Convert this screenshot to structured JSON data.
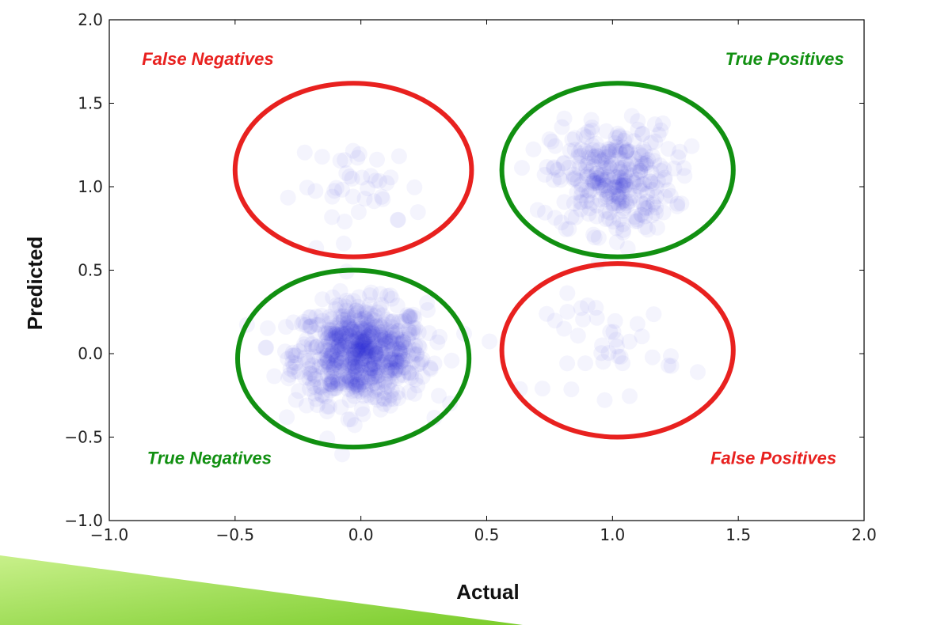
{
  "colors": {
    "point": "#2a2ad4",
    "true_color": "#119011",
    "false_color": "#e8211f",
    "accent_green_light": "#c8f08a",
    "accent_green_dark": "#7acc2a"
  },
  "chart_data": {
    "type": "scatter",
    "xlabel": "Actual",
    "ylabel": "Predicted",
    "xlim": [
      -1.0,
      2.0
    ],
    "ylim": [
      -1.0,
      2.0
    ],
    "xticks": [
      -1.0,
      -0.5,
      0.0,
      0.5,
      1.0,
      1.5,
      2.0
    ],
    "yticks": [
      -1.0,
      -0.5,
      0.0,
      0.5,
      1.0,
      1.5,
      2.0
    ],
    "xtick_labels": [
      "−1.0",
      "−0.5",
      "0.0",
      "0.5",
      "1.0",
      "1.5",
      "2.0"
    ],
    "ytick_labels": [
      "−1.0",
      "−0.5",
      "0.0",
      "0.5",
      "1.0",
      "1.5",
      "2.0"
    ],
    "grid": false,
    "point_alpha": 0.05,
    "clusters": [
      {
        "name": "True Negatives",
        "center": [
          0.0,
          0.0
        ],
        "spread": [
          0.13,
          0.15
        ],
        "points": 700
      },
      {
        "name": "True Positives",
        "center": [
          1.0,
          1.05
        ],
        "spread": [
          0.12,
          0.16
        ],
        "points": 320
      },
      {
        "name": "False Negatives",
        "center": [
          0.0,
          1.0
        ],
        "spread": [
          0.13,
          0.13
        ],
        "points": 40
      },
      {
        "name": "False Positives",
        "center": [
          1.0,
          0.05
        ],
        "spread": [
          0.13,
          0.15
        ],
        "points": 40
      }
    ],
    "regions": [
      {
        "label": "False Negatives",
        "kind": "false",
        "center": [
          -0.03,
          1.1
        ],
        "radius": [
          0.47,
          0.52
        ]
      },
      {
        "label": "True Positives",
        "kind": "true",
        "center": [
          1.02,
          1.1
        ],
        "radius": [
          0.46,
          0.52
        ]
      },
      {
        "label": "True Negatives",
        "kind": "true",
        "center": [
          -0.03,
          -0.03
        ],
        "radius": [
          0.46,
          0.53
        ]
      },
      {
        "label": "False Positives",
        "kind": "false",
        "center": [
          1.02,
          0.02
        ],
        "radius": [
          0.46,
          0.52
        ]
      }
    ],
    "annotations": [
      {
        "text": "False Negatives",
        "kind": "false",
        "x": -0.87,
        "y": 1.73,
        "anchor": "start"
      },
      {
        "text": "True Positives",
        "kind": "true",
        "x": 1.92,
        "y": 1.73,
        "anchor": "end"
      },
      {
        "text": "True Negatives",
        "kind": "true",
        "x": -0.85,
        "y": -0.66,
        "anchor": "start"
      },
      {
        "text": "False Positives",
        "kind": "false",
        "x": 1.89,
        "y": -0.66,
        "anchor": "end"
      }
    ]
  }
}
